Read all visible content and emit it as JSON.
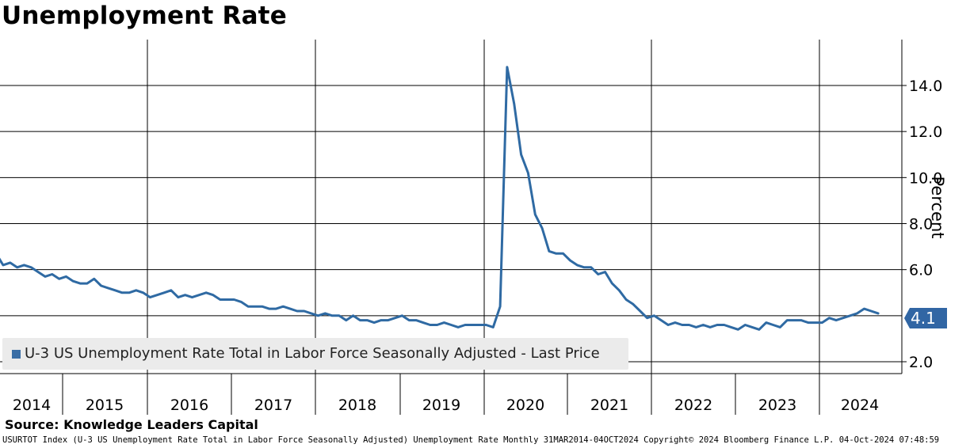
{
  "title": "Unemployment Rate",
  "source": "Source: Knowledge Leaders Capital",
  "footer": "USURTOT Index (U-3 US Unemployment Rate Total in Labor Force Seasonally Adjusted) Unemployment Rate  Monthly 31MAR2014-04OCT2024 Copyright© 2024 Bloomberg Finance L.P. 04-Oct-2024 07:48:59",
  "colors": {
    "series": "#2f6aa3",
    "badge": "#3166a4",
    "legend_bg": "#ebebeb"
  },
  "chart_data": {
    "type": "line",
    "ylabel": "Percent",
    "ylim": [
      1.6,
      15.8
    ],
    "y_ticks": [
      "2.0",
      "6.0",
      "8.0",
      "10.0",
      "12.0",
      "14.0"
    ],
    "x_ticks": [
      "2014",
      "2015",
      "2016",
      "2017",
      "2018",
      "2019",
      "2020",
      "2021",
      "2022",
      "2023",
      "2024"
    ],
    "grid": "y-gridlines and year separators",
    "legend": {
      "position": "bottom-left",
      "label": "U-3 US Unemployment Rate Total in Labor Force Seasonally Adjusted - Last Price"
    },
    "last_value": "4.1",
    "series": [
      {
        "name": "U-3 US Unemployment Rate Total in Labor Force Seasonally Adjusted - Last Price",
        "start": "2014-03",
        "frequency": "monthly",
        "values": [
          6.7,
          6.2,
          6.3,
          6.1,
          6.2,
          6.1,
          5.9,
          5.7,
          5.8,
          5.6,
          5.7,
          5.5,
          5.4,
          5.4,
          5.6,
          5.3,
          5.2,
          5.1,
          5.0,
          5.0,
          5.1,
          5.0,
          4.8,
          4.9,
          5.0,
          5.1,
          4.8,
          4.9,
          4.8,
          4.9,
          5.0,
          4.9,
          4.7,
          4.7,
          4.7,
          4.6,
          4.4,
          4.4,
          4.4,
          4.3,
          4.3,
          4.4,
          4.3,
          4.2,
          4.2,
          4.1,
          4.0,
          4.1,
          4.0,
          4.0,
          3.8,
          4.0,
          3.8,
          3.8,
          3.7,
          3.8,
          3.8,
          3.9,
          4.0,
          3.8,
          3.8,
          3.7,
          3.6,
          3.6,
          3.7,
          3.6,
          3.5,
          3.6,
          3.6,
          3.6,
          3.6,
          3.5,
          4.4,
          14.8,
          13.2,
          11.0,
          10.2,
          8.4,
          7.8,
          6.8,
          6.7,
          6.7,
          6.4,
          6.2,
          6.1,
          6.1,
          5.8,
          5.9,
          5.4,
          5.1,
          4.7,
          4.5,
          4.2,
          3.9,
          4.0,
          3.8,
          3.6,
          3.7,
          3.6,
          3.6,
          3.5,
          3.6,
          3.5,
          3.6,
          3.6,
          3.5,
          3.4,
          3.6,
          3.5,
          3.4,
          3.7,
          3.6,
          3.5,
          3.8,
          3.8,
          3.8,
          3.7,
          3.7,
          3.7,
          3.9,
          3.8,
          3.9,
          4.0,
          4.1,
          4.3,
          4.2,
          4.1
        ]
      }
    ]
  }
}
